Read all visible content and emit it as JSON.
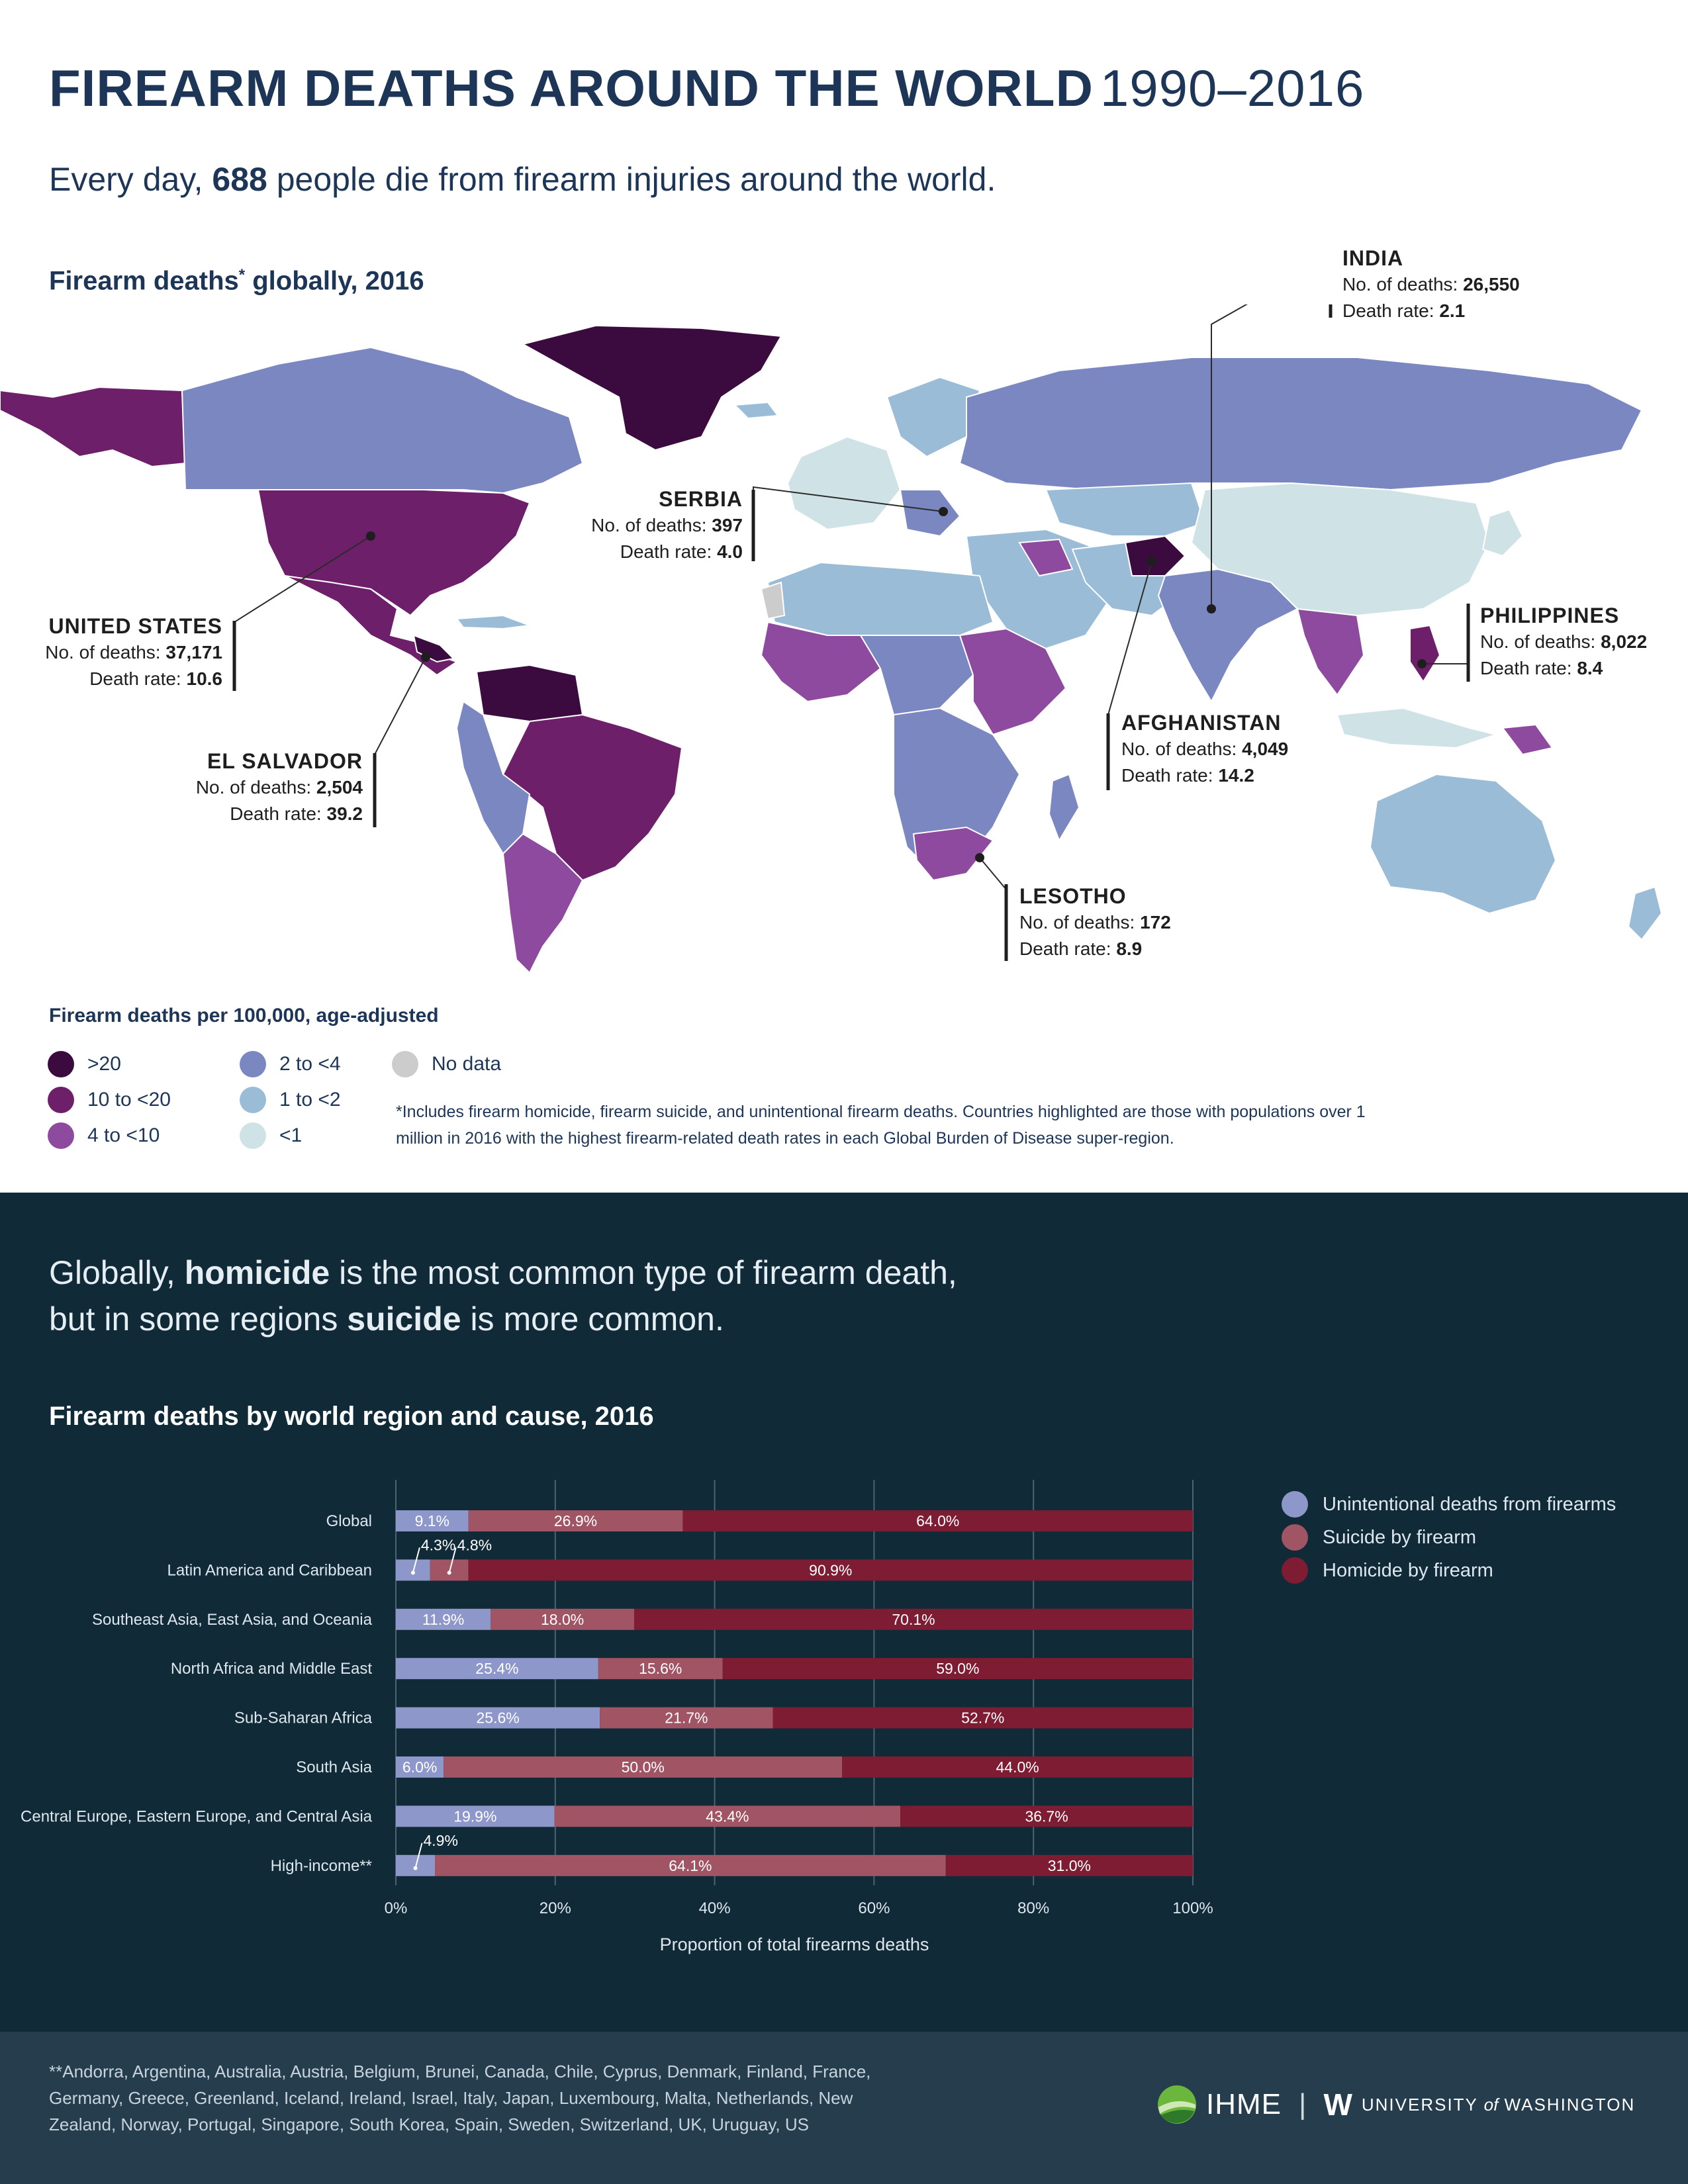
{
  "header": {
    "title_bold": "FIREARM DEATHS AROUND THE WORLD",
    "title_years": "1990–2016",
    "subtitle_pre": "Every day, ",
    "subtitle_num": "688",
    "subtitle_post": " people die from firearm injuries around the world."
  },
  "map": {
    "title": "Firearm deaths",
    "title_mark": "*",
    "title_post": " globally, 2016",
    "deaths_label": "No. of deaths: ",
    "rate_label": "Death rate: ",
    "callouts": {
      "india": {
        "name": "INDIA",
        "deaths": "26,550",
        "rate": "2.1"
      },
      "serbia": {
        "name": "SERBIA",
        "deaths": "397",
        "rate": "4.0"
      },
      "united_states": {
        "name": "UNITED STATES",
        "deaths": "37,171",
        "rate": "10.6"
      },
      "philippines": {
        "name": "PHILIPPINES",
        "deaths": "8,022",
        "rate": "8.4"
      },
      "afghanistan": {
        "name": "AFGHANISTAN",
        "deaths": "4,049",
        "rate": "14.2"
      },
      "el_salvador": {
        "name": "EL SALVADOR",
        "deaths": "2,504",
        "rate": "39.2"
      },
      "lesotho": {
        "name": "LESOTHO",
        "deaths": "172",
        "rate": "8.9"
      }
    },
    "legend_title": "Firearm deaths per 100,000, age-adjusted",
    "legend": [
      {
        "label": ">20",
        "color": "#3b0a3e"
      },
      {
        "label": "10 to <20",
        "color": "#6e1f6a"
      },
      {
        "label": "4 to <10",
        "color": "#8e4a9e"
      },
      {
        "label": "2 to <4",
        "color": "#7b87c0"
      },
      {
        "label": "1 to <2",
        "color": "#9bbcd6"
      },
      {
        "label": "<1",
        "color": "#cfe3e6"
      },
      {
        "label": "No data",
        "color": "#cccccc"
      }
    ],
    "footnote": "*Includes firearm homicide, firearm suicide, and unintentional firearm deaths. Countries highlighted are those with populations over 1 million in 2016 with the highest firearm-related death rates in each Global Burden of Disease super-region."
  },
  "section2": {
    "line1_pre": "Globally, ",
    "line1_bold": "homicide",
    "line1_post": " is the most common type of firearm death,",
    "line2_pre": "but in some regions ",
    "line2_bold": "suicide",
    "line2_post": " is more common."
  },
  "chart_data": {
    "type": "bar",
    "orientation": "horizontal-stacked",
    "title": "Firearm deaths by world region and cause, 2016",
    "xlabel": "Proportion of total firearms deaths",
    "xlim": [
      0,
      100
    ],
    "xticks": [
      "0%",
      "20%",
      "40%",
      "60%",
      "80%",
      "100%"
    ],
    "grid": true,
    "legend_position": "right",
    "categories": [
      "Global",
      "Latin America and Caribbean",
      "Southeast Asia, East Asia, and Oceania",
      "North Africa and Middle East",
      "Sub-Saharan Africa",
      "South Asia",
      "Central Europe, Eastern Europe, and Central Asia",
      "High-income**"
    ],
    "series": [
      {
        "name": "Unintentional deaths from firearms",
        "color": "#8d97c9",
        "values": [
          9.1,
          4.3,
          11.9,
          25.4,
          25.6,
          6.0,
          19.9,
          4.9
        ],
        "labels": [
          "9.1%",
          "4.3%",
          "11.9%",
          "25.4%",
          "25.6%",
          "6.0%",
          "19.9%",
          "4.9%"
        ]
      },
      {
        "name": "Suicide by firearm",
        "color": "#a15463",
        "values": [
          26.9,
          4.8,
          18.0,
          15.6,
          21.7,
          50.0,
          43.4,
          64.1
        ],
        "labels": [
          "26.9%",
          "4.8%",
          "18.0%",
          "15.6%",
          "21.7%",
          "50.0%",
          "43.4%",
          "64.1%"
        ]
      },
      {
        "name": "Homicide by firearm",
        "color": "#7e1c34",
        "values": [
          64.0,
          90.9,
          70.1,
          59.0,
          52.7,
          44.0,
          36.7,
          31.0
        ],
        "labels": [
          "64.0%",
          "90.9%",
          "70.1%",
          "59.0%",
          "52.7%",
          "44.0%",
          "36.7%",
          "31.0%"
        ]
      }
    ]
  },
  "footer": {
    "high_income_note": "**Andorra, Argentina, Australia, Austria, Belgium, Brunei, Canada, Chile, Cyprus, Denmark, Finland, France, Germany, Greece, Greenland, Iceland, Ireland, Israel, Italy, Japan, Luxembourg, Malta, Netherlands, New Zealand, Norway, Portugal, Singapore, South Korea, Spain, Sweden, Switzerland, UK, Uruguay, US",
    "ihme": "IHME",
    "separator": "|",
    "uw_mark": "W",
    "uw_pre": "UNIVERSITY ",
    "uw_of": "of",
    "uw_post": " WASHINGTON"
  }
}
